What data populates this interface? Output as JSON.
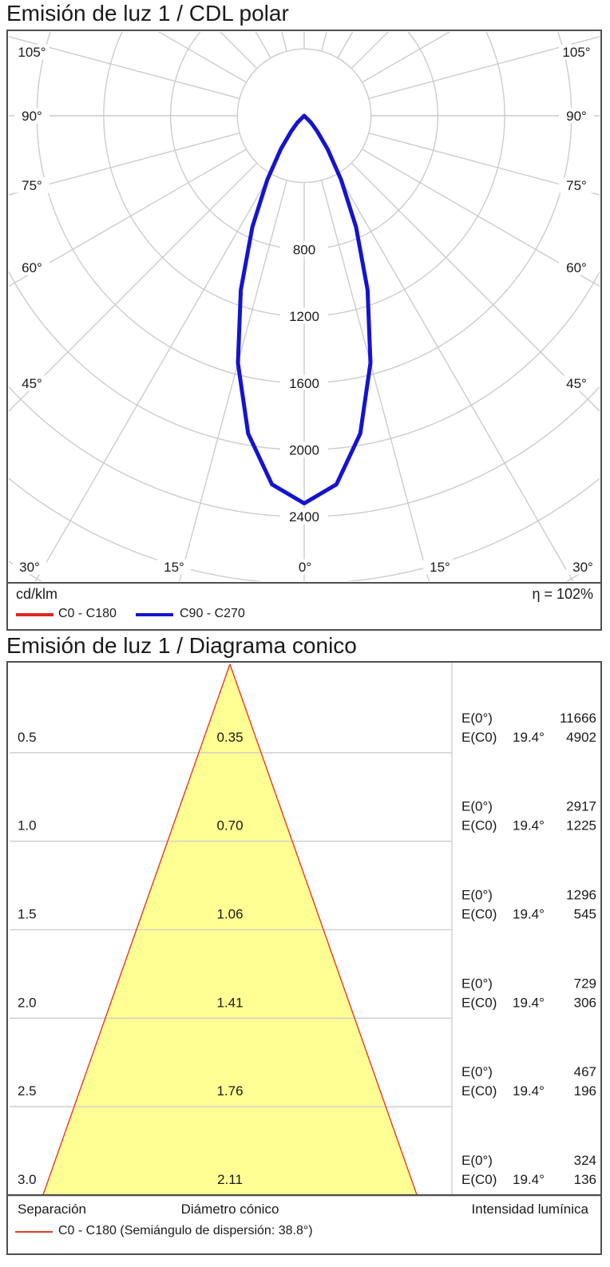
{
  "colors": {
    "curve_red": "#df2722",
    "curve_blue": "#1414cf",
    "cone_fill": "#ffff94",
    "cone_outline": "#e8392b",
    "grid": "#cccccc",
    "frame": "#4f4f4f",
    "text": "#1a1a1a"
  },
  "section1": {
    "title": "Emisión de luz 1 / CDL polar"
  },
  "section2": {
    "title": "Emisión de luz 1 / Diagrama conico"
  },
  "chart_data": [
    {
      "type": "polar",
      "name": "CDL polar",
      "unit": "cd/klm",
      "efficiency": "η = 102%",
      "angle_step_deg": 15,
      "radial_step_cd_klm": 400,
      "radial_max_cd_klm": 2800,
      "radial_tick_labels": [
        "800",
        "1200",
        "1600",
        "2000",
        "2400"
      ],
      "angle_labels_side": [
        "105°",
        "90°",
        "75°",
        "60°",
        "45°"
      ],
      "angle_labels_bottom": [
        "30°",
        "15°",
        "0°",
        "15°",
        "30°"
      ],
      "max_intensity_cd_klm": 2320,
      "series": [
        {
          "name": "C0 - C180",
          "color_key": "curve_red",
          "angles_deg": [
            -50,
            -45,
            -40,
            -35,
            -30,
            -25,
            -20,
            -15,
            -10,
            -5,
            0,
            5,
            10,
            15,
            20,
            25,
            30,
            35,
            40,
            45,
            50
          ],
          "values_cd_klm": [
            0,
            56,
            122,
            244,
            442,
            734,
            1110,
            1532,
            1932,
            2215,
            2320,
            2215,
            1932,
            1532,
            1110,
            734,
            442,
            244,
            122,
            56,
            0
          ]
        },
        {
          "name": "C90 - C270",
          "color_key": "curve_blue",
          "angles_deg": [
            -50,
            -45,
            -40,
            -35,
            -30,
            -25,
            -20,
            -15,
            -10,
            -5,
            0,
            5,
            10,
            15,
            20,
            25,
            30,
            35,
            40,
            45,
            50
          ],
          "values_cd_klm": [
            0,
            56,
            122,
            244,
            442,
            734,
            1110,
            1532,
            1932,
            2215,
            2320,
            2215,
            1932,
            1532,
            1110,
            734,
            442,
            244,
            122,
            56,
            0
          ]
        }
      ]
    },
    {
      "type": "cone",
      "name": "Diagrama conico",
      "beam_half_angle_deg": 19.4,
      "col_separation": "Separación",
      "col_diameter": "Diámetro cónico",
      "col_intensity": "Intensidad lumínica",
      "legend_label": "C0 - C180 (Semiángulo de dispersión: 38.8°)",
      "e0_label": "E(0°)",
      "ec0_label": "E(C0)",
      "angle_label": "19.4°",
      "rows": [
        {
          "separation_m": "0.5",
          "diameter_m": "0.35",
          "e0_lx": "11666",
          "ec0_lx": "4902"
        },
        {
          "separation_m": "1.0",
          "diameter_m": "0.70",
          "e0_lx": "2917",
          "ec0_lx": "1225"
        },
        {
          "separation_m": "1.5",
          "diameter_m": "1.06",
          "e0_lx": "1296",
          "ec0_lx": "545"
        },
        {
          "separation_m": "2.0",
          "diameter_m": "1.41",
          "e0_lx": "729",
          "ec0_lx": "306"
        },
        {
          "separation_m": "2.5",
          "diameter_m": "1.76",
          "e0_lx": "467",
          "ec0_lx": "196"
        },
        {
          "separation_m": "3.0",
          "diameter_m": "2.11",
          "e0_lx": "324",
          "ec0_lx": "136"
        }
      ]
    }
  ]
}
